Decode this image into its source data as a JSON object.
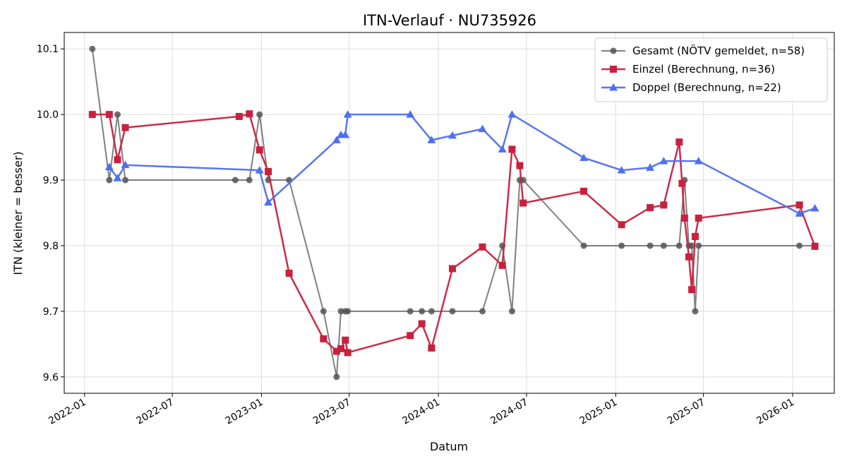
{
  "chart_data": {
    "type": "line",
    "title": "ITN-Verlauf · NU735926",
    "xlabel": "Datum",
    "ylabel": "ITN  (kleiner = besser)",
    "xlim": [
      "2021-11-20",
      "2026-03-28"
    ],
    "ylim": [
      9.575,
      10.125
    ],
    "x_ticks": [
      "2022-01-01",
      "2022-07-01",
      "2023-01-01",
      "2023-07-01",
      "2024-01-01",
      "2024-07-01",
      "2025-01-01",
      "2025-07-01",
      "2026-01-01"
    ],
    "x_tick_labels": [
      "2022-01",
      "2022-07",
      "2023-01",
      "2023-07",
      "2024-01",
      "2024-07",
      "2025-01",
      "2025-07",
      "2026-01"
    ],
    "y_ticks": [
      9.6,
      9.7,
      9.8,
      9.9,
      10.0,
      10.1
    ],
    "y_tick_labels": [
      "9.6",
      "9.7",
      "9.8",
      "9.9",
      "10.0",
      "10.1"
    ],
    "grid": true,
    "legend_position": "top-right",
    "series": [
      {
        "name": "Gesamt (NÖTV gemeldet, n=58)",
        "color": "#555555",
        "marker": "circle",
        "points": [
          [
            "2022-01-17",
            10.1
          ],
          [
            "2022-02-21",
            9.9
          ],
          [
            "2022-03-10",
            10.0
          ],
          [
            "2022-03-26",
            9.9
          ],
          [
            "2022-11-08",
            9.9
          ],
          [
            "2022-12-07",
            9.9
          ],
          [
            "2022-12-28",
            10.0
          ],
          [
            "2023-01-15",
            9.9
          ],
          [
            "2023-02-27",
            9.9
          ],
          [
            "2023-05-09",
            9.7
          ],
          [
            "2023-06-05",
            9.6
          ],
          [
            "2023-06-14",
            9.7
          ],
          [
            "2023-06-23",
            9.7
          ],
          [
            "2023-06-28",
            9.7
          ],
          [
            "2023-11-04",
            9.7
          ],
          [
            "2023-11-28",
            9.7
          ],
          [
            "2023-12-18",
            9.7
          ],
          [
            "2024-01-30",
            9.7
          ],
          [
            "2024-04-01",
            9.7
          ],
          [
            "2024-05-12",
            9.8
          ],
          [
            "2024-06-01",
            9.7
          ],
          [
            "2024-06-17",
            9.9
          ],
          [
            "2024-06-24",
            9.9
          ],
          [
            "2024-10-27",
            9.8
          ],
          [
            "2025-01-13",
            9.8
          ],
          [
            "2025-03-13",
            9.8
          ],
          [
            "2025-04-10",
            9.8
          ],
          [
            "2025-05-12",
            9.8
          ],
          [
            "2025-05-23",
            9.9
          ],
          [
            "2025-06-01",
            9.8
          ],
          [
            "2025-06-07",
            9.8
          ],
          [
            "2025-06-14",
            9.7
          ],
          [
            "2025-06-21",
            9.8
          ],
          [
            "2026-01-15",
            9.8
          ],
          [
            "2026-02-16",
            9.8
          ]
        ]
      },
      {
        "name": "Einzel (Berechnung, n=36)",
        "color": "#c8213e",
        "marker": "square",
        "points": [
          [
            "2022-01-17",
            10.0
          ],
          [
            "2022-02-21",
            10.0
          ],
          [
            "2022-03-10",
            9.931
          ],
          [
            "2022-03-26",
            9.98
          ],
          [
            "2022-11-16",
            9.997
          ],
          [
            "2022-12-07",
            10.001
          ],
          [
            "2022-12-28",
            9.946
          ],
          [
            "2023-01-15",
            9.913
          ],
          [
            "2023-02-27",
            9.758
          ],
          [
            "2023-05-09",
            9.658
          ],
          [
            "2023-06-05",
            9.639
          ],
          [
            "2023-06-14",
            9.643
          ],
          [
            "2023-06-23",
            9.656
          ],
          [
            "2023-06-28",
            9.637
          ],
          [
            "2023-11-04",
            9.663
          ],
          [
            "2023-11-28",
            9.681
          ],
          [
            "2023-12-18",
            9.644
          ],
          [
            "2024-01-30",
            9.765
          ],
          [
            "2024-04-01",
            9.798
          ],
          [
            "2024-05-12",
            9.77
          ],
          [
            "2024-06-01",
            9.947
          ],
          [
            "2024-06-17",
            9.922
          ],
          [
            "2024-06-24",
            9.865
          ],
          [
            "2024-10-27",
            9.883
          ],
          [
            "2025-01-13",
            9.832
          ],
          [
            "2025-03-13",
            9.858
          ],
          [
            "2025-04-10",
            9.862
          ],
          [
            "2025-05-12",
            9.958
          ],
          [
            "2025-05-18",
            9.895
          ],
          [
            "2025-05-23",
            9.842
          ],
          [
            "2025-06-01",
            9.783
          ],
          [
            "2025-06-07",
            9.733
          ],
          [
            "2025-06-14",
            9.814
          ],
          [
            "2025-06-21",
            9.842
          ],
          [
            "2026-01-15",
            9.862
          ],
          [
            "2026-02-16",
            9.799
          ]
        ]
      },
      {
        "name": "Doppel (Berechnung, n=22)",
        "color": "#4f6ff0",
        "marker": "triangle",
        "points": [
          [
            "2022-02-21",
            9.92
          ],
          [
            "2022-03-10",
            9.903
          ],
          [
            "2022-03-26",
            9.923
          ],
          [
            "2022-12-28",
            9.915
          ],
          [
            "2023-01-15",
            9.866
          ],
          [
            "2023-06-05",
            9.961
          ],
          [
            "2023-06-14",
            9.969
          ],
          [
            "2023-06-23",
            9.969
          ],
          [
            "2023-06-28",
            10.0
          ],
          [
            "2023-11-04",
            10.0
          ],
          [
            "2023-12-18",
            9.961
          ],
          [
            "2024-01-30",
            9.968
          ],
          [
            "2024-04-01",
            9.978
          ],
          [
            "2024-05-12",
            9.947
          ],
          [
            "2024-06-01",
            10.0
          ],
          [
            "2024-10-27",
            9.934
          ],
          [
            "2025-01-13",
            9.915
          ],
          [
            "2025-03-13",
            9.919
          ],
          [
            "2025-04-10",
            9.929
          ],
          [
            "2025-06-21",
            9.929
          ],
          [
            "2026-01-15",
            9.849
          ],
          [
            "2026-02-16",
            9.857
          ]
        ]
      }
    ]
  }
}
